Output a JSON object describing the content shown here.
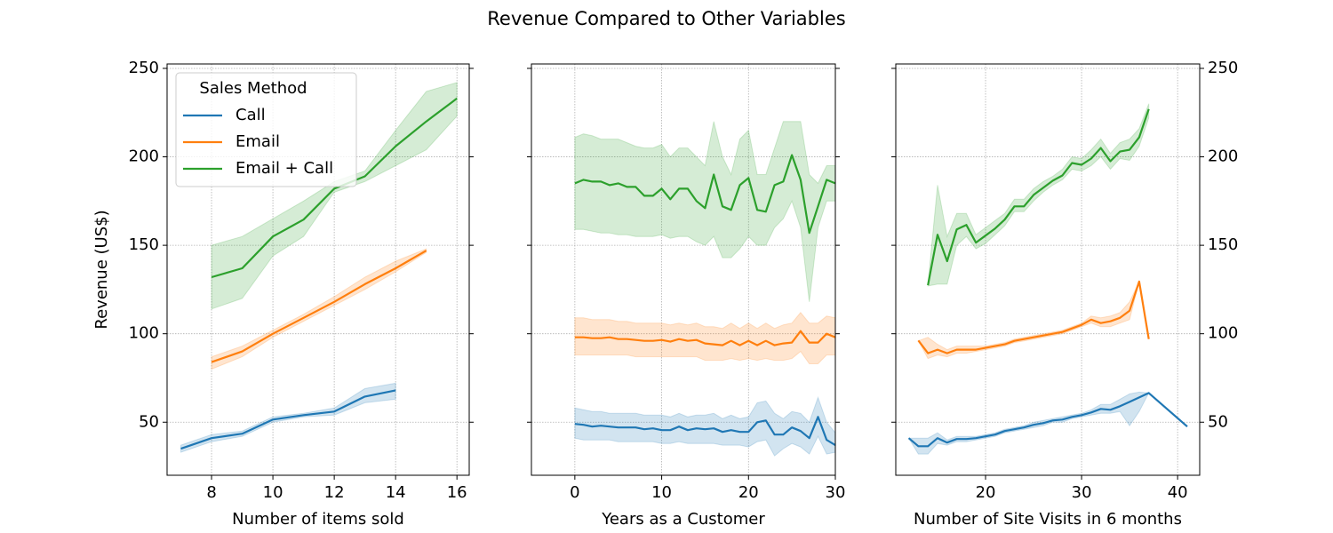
{
  "title": "Revenue Compared to Other Variables",
  "chart_data": [
    {
      "type": "line",
      "xlabel": "Number of items sold",
      "ylabel": "Revenue (US$)",
      "xlim": [
        6.55,
        16.4
      ],
      "xticks": [
        8,
        10,
        12,
        14,
        16
      ],
      "ylim": [
        20,
        252.5
      ],
      "yticks": [
        50,
        100,
        150,
        200,
        250
      ],
      "yaxis_side": "left",
      "ytick_labels": true,
      "grid": true,
      "legend": {
        "title": "Sales Method",
        "loc": "upper left"
      },
      "series": [
        {
          "name": "Call",
          "color": "#1f77b4",
          "x": [
            7,
            8,
            9,
            10,
            11,
            12,
            13,
            14
          ],
          "values": [
            35,
            41,
            43.5,
            51.5,
            54,
            56,
            64.5,
            68
          ],
          "ci_lower": [
            33,
            39,
            42,
            50,
            53,
            54,
            61,
            63
          ],
          "ci_upper": [
            37,
            43,
            45,
            53,
            55,
            58,
            69,
            72
          ]
        },
        {
          "name": "Email",
          "color": "#ff7f0e",
          "x": [
            8,
            9,
            10,
            11,
            12,
            13,
            14,
            15
          ],
          "values": [
            84,
            90,
            100,
            109,
            118,
            128,
            137,
            147
          ],
          "ci_lower": [
            80,
            87,
            98,
            107,
            116,
            125,
            135,
            146
          ],
          "ci_upper": [
            87,
            93,
            102,
            111,
            121,
            132,
            141,
            148
          ]
        },
        {
          "name": "Email + Call",
          "color": "#2ca02c",
          "x": [
            8,
            9,
            10,
            11,
            12,
            13,
            14,
            15,
            16
          ],
          "values": [
            132,
            137,
            155,
            164.5,
            182,
            189,
            206,
            220,
            233
          ],
          "ci_lower": [
            114,
            120,
            144,
            155,
            180,
            186,
            195,
            204,
            223
          ],
          "ci_upper": [
            150,
            155,
            165,
            175,
            186,
            192,
            215,
            237,
            242
          ]
        }
      ]
    },
    {
      "type": "line",
      "xlabel": "Years as a Customer",
      "xlim": [
        -5,
        30
      ],
      "xticks": [
        0,
        10,
        20,
        30
      ],
      "ylim": [
        20,
        252.5
      ],
      "yticks": [
        50,
        100,
        150,
        200,
        250
      ],
      "yaxis_side": "left",
      "ytick_labels": false,
      "grid": true,
      "series": [
        {
          "name": "Call",
          "color": "#1f77b4",
          "x": [
            0,
            1,
            2,
            3,
            4,
            5,
            6,
            7,
            8,
            9,
            10,
            11,
            12,
            13,
            14,
            15,
            16,
            17,
            18,
            19,
            20,
            21,
            22,
            23,
            24,
            25,
            26,
            27,
            28,
            29,
            30
          ],
          "values": [
            49,
            48.5,
            47.5,
            48,
            47.5,
            47,
            47,
            47,
            46,
            46.5,
            45.5,
            45.5,
            47.5,
            45.5,
            46.5,
            46,
            46.5,
            44.5,
            45.5,
            44.5,
            44.5,
            50,
            51,
            43,
            43,
            47,
            45,
            41,
            53,
            40,
            37
          ],
          "ci_lower": [
            41,
            40,
            40,
            40,
            40,
            39,
            39,
            39,
            39,
            39,
            38,
            38,
            39,
            38,
            38,
            38,
            38,
            37,
            37,
            37,
            36,
            39,
            40,
            31,
            35,
            38,
            36,
            32,
            42,
            32,
            33
          ],
          "ci_upper": [
            58,
            57,
            56,
            56,
            55,
            55,
            55,
            55,
            54,
            54,
            54,
            53,
            55,
            53,
            54,
            54,
            55,
            52,
            54,
            52,
            53,
            61,
            62,
            55,
            52,
            56,
            55,
            50,
            64,
            50,
            44
          ]
        },
        {
          "name": "Email",
          "color": "#ff7f0e",
          "x": [
            0,
            1,
            2,
            3,
            4,
            5,
            6,
            7,
            8,
            9,
            10,
            11,
            12,
            13,
            14,
            15,
            16,
            17,
            18,
            19,
            20,
            21,
            22,
            23,
            24,
            25,
            26,
            27,
            28,
            29,
            30
          ],
          "values": [
            98,
            98,
            97.5,
            97.5,
            98,
            97,
            97,
            96.5,
            96,
            96,
            96.5,
            95.5,
            97,
            96,
            96.5,
            94.5,
            94,
            93.5,
            96,
            93.5,
            96,
            93.5,
            96,
            93.5,
            94.5,
            95,
            101.5,
            95,
            95,
            100,
            98
          ],
          "ci_lower": [
            88,
            88,
            88,
            88,
            88,
            88,
            88,
            87,
            87,
            87,
            87,
            87,
            87,
            87,
            87,
            85,
            85,
            85,
            86,
            85,
            86,
            85,
            86,
            85,
            85,
            86,
            90,
            83,
            83,
            88,
            88
          ],
          "ci_upper": [
            109,
            109,
            108,
            108,
            108,
            107,
            107,
            106,
            106,
            106,
            106,
            105,
            106,
            105,
            106,
            104,
            104,
            103,
            106,
            103,
            106,
            103,
            106,
            103,
            105,
            106,
            112,
            106,
            106,
            110,
            109
          ]
        },
        {
          "name": "Email + Call",
          "color": "#2ca02c",
          "x": [
            0,
            1,
            2,
            3,
            4,
            5,
            6,
            7,
            8,
            9,
            10,
            11,
            12,
            13,
            14,
            15,
            16,
            17,
            18,
            19,
            20,
            21,
            22,
            23,
            24,
            25,
            26,
            27,
            28,
            29,
            30
          ],
          "values": [
            185,
            187,
            186,
            186,
            184,
            185,
            183,
            183,
            178,
            178,
            182,
            176,
            182,
            182,
            175,
            171,
            190,
            172,
            170,
            184,
            188,
            170,
            169,
            184,
            186,
            201,
            187,
            157,
            172,
            187,
            185
          ],
          "ci_lower": [
            159,
            159,
            158,
            157,
            157,
            156,
            156,
            155,
            155,
            155,
            156,
            154,
            155,
            155,
            152,
            150,
            155,
            143,
            143,
            148,
            155,
            150,
            150,
            160,
            165,
            175,
            160,
            118,
            160,
            175,
            175
          ],
          "ci_upper": [
            211,
            213,
            212,
            210,
            210,
            210,
            208,
            206,
            205,
            205,
            207,
            200,
            205,
            205,
            200,
            195,
            220,
            200,
            190,
            210,
            215,
            190,
            190,
            205,
            220,
            220,
            220,
            190,
            185,
            195,
            195
          ]
        }
      ]
    },
    {
      "type": "line",
      "xlabel": "Number of Site Visits in 6 months",
      "xlim": [
        10.65,
        42.3
      ],
      "xticks": [
        20,
        30,
        40
      ],
      "ylim": [
        20,
        252.5
      ],
      "yticks": [
        50,
        100,
        150,
        200,
        250
      ],
      "yaxis_side": "right",
      "ytick_labels": true,
      "grid": true,
      "series": [
        {
          "name": "Call",
          "color": "#1f77b4",
          "x": [
            12,
            13,
            14,
            15,
            16,
            17,
            18,
            19,
            20,
            21,
            22,
            23,
            24,
            25,
            26,
            27,
            28,
            29,
            30,
            31,
            32,
            33,
            34,
            35,
            36,
            37,
            41
          ],
          "values": [
            41,
            36.4,
            36.4,
            41,
            38.5,
            40.5,
            40.5,
            41,
            42,
            43,
            45,
            46,
            47,
            48.5,
            49.5,
            51,
            51.5,
            53,
            54,
            55.5,
            57.5,
            57,
            59,
            61.5,
            64,
            66.5,
            47.5
          ],
          "ci_lower": [
            41,
            32,
            32,
            38,
            37,
            39,
            39,
            40,
            41,
            42,
            44,
            45,
            46,
            47,
            48,
            50,
            50,
            52,
            53,
            54,
            55,
            55,
            56,
            48,
            56,
            66.5,
            47.5
          ],
          "ci_upper": [
            41,
            41,
            41,
            44,
            40,
            42,
            42,
            42,
            43,
            44,
            46,
            47,
            48,
            50,
            51,
            52,
            53,
            54,
            55,
            57,
            60,
            60,
            63,
            66,
            67,
            66.5,
            47.5
          ]
        },
        {
          "name": "Email",
          "color": "#ff7f0e",
          "x": [
            13,
            14,
            15,
            16,
            17,
            18,
            19,
            20,
            21,
            22,
            23,
            24,
            25,
            26,
            27,
            28,
            29,
            30,
            31,
            32,
            33,
            34,
            35,
            36,
            37
          ],
          "values": [
            96.2,
            89,
            91,
            89,
            91,
            91,
            91,
            92,
            93,
            94,
            96,
            97,
            98,
            99,
            100,
            101,
            103,
            105,
            108,
            106,
            107,
            109,
            113,
            129.5,
            97
          ],
          "ci_lower": [
            96,
            86,
            88,
            87,
            89,
            89,
            90,
            91,
            92,
            93,
            95,
            96,
            97,
            98,
            99,
            100,
            102,
            104,
            106,
            104,
            104,
            106,
            108,
            129.5,
            97
          ],
          "ci_upper": [
            96,
            98,
            94,
            91,
            93,
            93,
            93,
            93,
            94,
            95,
            97,
            98,
            99,
            100,
            101,
            102,
            104,
            106,
            110,
            109,
            110,
            112,
            118,
            129.5,
            97
          ]
        },
        {
          "name": "Email + Call",
          "color": "#2ca02c",
          "x": [
            14,
            15,
            16,
            17,
            18,
            19,
            20,
            21,
            22,
            23,
            24,
            25,
            26,
            27,
            28,
            29,
            30,
            31,
            32,
            33,
            34,
            35,
            36,
            37
          ],
          "values": [
            127.4,
            156,
            141,
            159,
            161.5,
            151.5,
            155.5,
            159.5,
            164.5,
            172,
            172,
            178.5,
            182.5,
            186.5,
            189.5,
            196.5,
            195.5,
            199,
            205,
            197.5,
            203,
            204,
            211,
            227
          ],
          "ci_lower": [
            127,
            128,
            128,
            150,
            155,
            148,
            151,
            156,
            161,
            169,
            169,
            175,
            180,
            184,
            187,
            193,
            192,
            195,
            200,
            193,
            199,
            198,
            206,
            222
          ],
          "ci_upper": [
            128,
            184,
            155,
            168,
            168,
            156,
            160,
            164,
            168,
            176,
            176,
            182,
            186,
            189,
            193,
            200,
            199,
            204,
            210,
            202,
            208,
            210,
            216,
            230
          ]
        }
      ]
    }
  ]
}
